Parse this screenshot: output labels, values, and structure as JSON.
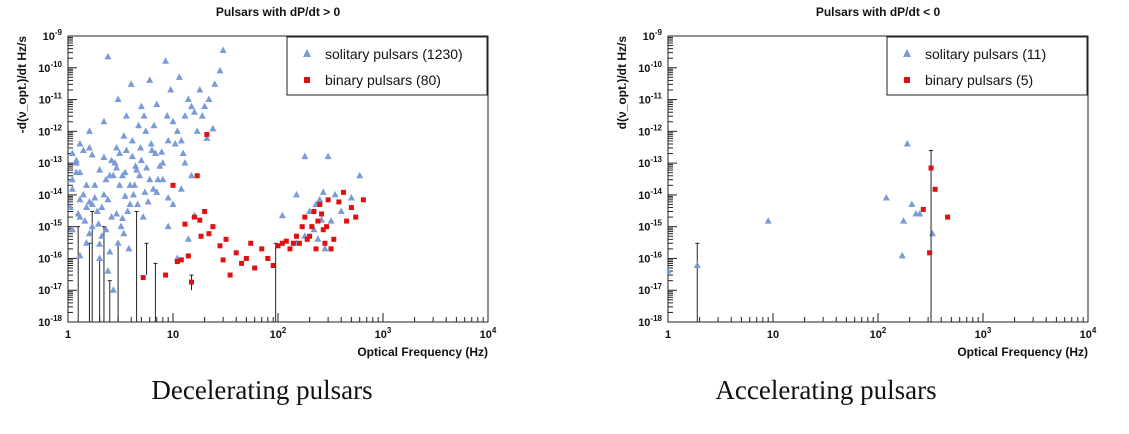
{
  "captions": [
    "Decelerating pulsars",
    "Accelerating pulsars"
  ],
  "colors": {
    "solitary": "#7b9bd6",
    "binary": "#e01010",
    "axis": "#222222",
    "errorbar": "#222222"
  },
  "chart_data": [
    {
      "type": "scatter",
      "title": "Pulsars with dP/dt > 0",
      "xlabel": "Optical Frequency (Hz)",
      "ylabel": "-d(ν_opt.)/dt  Hz/s",
      "xscale": "log",
      "yscale": "log",
      "xlim": [
        1,
        10000
      ],
      "ylim": [
        1e-18,
        1e-09
      ],
      "x_ticks": [
        "1",
        "10",
        "10^2",
        "10^3",
        "10^4"
      ],
      "y_ticks": [
        "10^-18",
        "10^-17",
        "10^-16",
        "10^-15",
        "10^-14",
        "10^-13",
        "10^-12",
        "10^-11",
        "10^-10",
        "10^-9"
      ],
      "legend_position": "top-right",
      "series": [
        {
          "name": "solitary pulsars (1230)",
          "marker": "triangle",
          "color": "#7b9bd6",
          "points": [
            [
              1.2,
              1e-13
            ],
            [
              1.3,
              5e-14
            ],
            [
              1.5,
              2e-14
            ],
            [
              1.8,
              8e-15
            ],
            [
              1.1,
              3e-14
            ],
            [
              1.4,
              1e-14
            ],
            [
              1.6,
              6e-15
            ],
            [
              1.9,
              3e-15
            ],
            [
              2.2,
              1e-14
            ],
            [
              2.5,
              4e-14
            ],
            [
              2.8,
              1e-13
            ],
            [
              3.1,
              2e-13
            ],
            [
              3.5,
              5e-14
            ],
            [
              3.9,
              2e-14
            ],
            [
              4.4,
              8e-14
            ],
            [
              4.9,
              3e-13
            ],
            [
              5.5,
              1e-12
            ],
            [
              6.2,
              4e-13
            ],
            [
              6.8,
              2e-13
            ],
            [
              7.5,
              8e-14
            ],
            [
              1.3,
              2e-15
            ],
            [
              1.7,
              1e-15
            ],
            [
              2.1,
              5e-16
            ],
            [
              2.6,
              2e-15
            ],
            [
              3.2,
              1e-15
            ],
            [
              3.7,
              3e-15
            ],
            [
              4.2,
              1e-14
            ],
            [
              1.1,
              8e-16
            ],
            [
              1.5,
              3e-16
            ],
            [
              2.0,
              1e-16
            ],
            [
              2.4,
              4e-17
            ],
            [
              2.7,
              1e-17
            ],
            [
              3.0,
              3e-16
            ],
            [
              3.4,
              6e-16
            ],
            [
              3.8,
              2e-16
            ],
            [
              4.6,
              5e-15
            ],
            [
              5.2,
              2e-15
            ],
            [
              5.8,
              6e-15
            ],
            [
              6.5,
              1.5e-14
            ],
            [
              7.2,
              3e-14
            ],
            [
              8.0,
              1e-13
            ],
            [
              9.0,
              5e-13
            ],
            [
              10,
              2e-12
            ],
            [
              11,
              1e-12
            ],
            [
              12,
              5e-13
            ],
            [
              13,
              3e-12
            ],
            [
              14,
              1e-11
            ],
            [
              16,
              4e-12
            ],
            [
              18,
              2e-11
            ],
            [
              20,
              6e-12
            ],
            [
              22,
              1e-11
            ],
            [
              25,
              3e-11
            ],
            [
              28,
              8e-11
            ],
            [
              30,
              3.5e-10
            ],
            [
              8.5,
              1.6e-10
            ],
            [
              6.0,
              4e-11
            ],
            [
              4.0,
              3e-11
            ],
            [
              3.0,
              1e-11
            ],
            [
              2.4,
              2.2e-10
            ],
            [
              9.5,
              2e-11
            ],
            [
              11.5,
              5e-11
            ],
            [
              5.0,
              6e-12
            ],
            [
              3.6,
              3e-12
            ],
            [
              2.2,
              2e-12
            ],
            [
              1.6,
              1e-12
            ],
            [
              1.3,
              4e-13
            ],
            [
              7.0,
              7e-12
            ],
            [
              15,
              6e-12
            ],
            [
              17,
              1e-12
            ],
            [
              19,
              3e-12
            ],
            [
              21,
              6e-13
            ],
            [
              24,
              1.2e-12
            ],
            [
              13,
              1e-13
            ],
            [
              15,
              4e-14
            ],
            [
              12,
              1.5e-14
            ],
            [
              10,
              5e-15
            ],
            [
              16,
              2.2e-15
            ],
            [
              9,
              1e-15
            ],
            [
              14,
              4e-16
            ],
            [
              11,
              1e-16
            ],
            [
              1.2,
              5e-14
            ],
            [
              1.4,
              2.5e-13
            ],
            [
              1.7,
              1.8e-13
            ],
            [
              2.0,
              6e-14
            ],
            [
              2.3,
              3e-14
            ],
            [
              2.6,
              1.2e-13
            ],
            [
              2.9,
              7e-14
            ],
            [
              3.3,
              4e-14
            ],
            [
              3.6,
              2.5e-13
            ],
            [
              4.1,
              1.6e-13
            ],
            [
              4.5,
              6e-14
            ],
            [
              5.0,
              1.2e-13
            ],
            [
              5.6,
              7e-14
            ],
            [
              6.3,
              2.5e-13
            ],
            [
              1.1,
              1.5e-14
            ],
            [
              1.3,
              7e-15
            ],
            [
              1.5,
              4e-15
            ],
            [
              1.8,
              2e-14
            ],
            [
              2.1,
              4e-15
            ],
            [
              2.4,
              7e-15
            ],
            [
              2.7,
              4e-14
            ],
            [
              3.1,
              2e-14
            ],
            [
              3.5,
              9e-15
            ],
            [
              3.9,
              5e-15
            ],
            [
              4.3,
              2e-14
            ],
            [
              4.8,
              4e-14
            ],
            [
              1.05,
              4e-15
            ],
            [
              1.25,
              2.5e-15
            ],
            [
              1.45,
              1.5e-15
            ],
            [
              1.7,
              5e-15
            ],
            [
              1.95,
              1.2e-15
            ],
            [
              2.3,
              8e-16
            ],
            [
              2.9,
              2.5e-15
            ],
            [
              3.3,
              1.8e-15
            ],
            [
              1.1,
              2e-13
            ],
            [
              1.2,
              1.2e-13
            ],
            [
              1.6,
              3e-13
            ],
            [
              2.2,
              1.5e-13
            ],
            [
              2.9,
              3e-13
            ],
            [
              3.4,
              7e-13
            ],
            [
              4.1,
              5e-13
            ],
            [
              4.7,
              1.5e-12
            ],
            [
              5.3,
              3e-12
            ],
            [
              6.6,
              1.5e-12
            ],
            [
              7.8,
              2.2e-13
            ],
            [
              8.8,
              3e-12
            ],
            [
              10.5,
              4e-13
            ],
            [
              12.5,
              2e-13
            ],
            [
              6.0,
              3e-14
            ],
            [
              7.0,
              1.2e-14
            ],
            [
              8.0,
              3e-14
            ],
            [
              9.0,
              8e-15
            ],
            [
              5.4,
              1.2e-14
            ],
            [
              2.0,
              2.8e-16
            ],
            [
              2.5,
              1.6e-16
            ],
            [
              1.3,
              1.2e-16
            ],
            [
              1.6,
              6e-16
            ],
            [
              110,
              2.2e-15
            ],
            [
              150,
              1e-14
            ],
            [
              180,
              1.6e-13
            ],
            [
              200,
              3e-15
            ],
            [
              230,
              5e-15
            ],
            [
              260,
              1.6e-15
            ],
            [
              300,
              1.6e-13
            ],
            [
              350,
              1e-14
            ],
            [
              400,
              3e-15
            ],
            [
              500,
              8e-15
            ],
            [
              600,
              4e-14
            ],
            [
              220,
              8e-16
            ],
            [
              240,
              4e-16
            ],
            [
              280,
              2e-16
            ],
            [
              250,
              7e-15
            ],
            [
              320,
              1.5e-15
            ],
            [
              180,
              5e-16
            ],
            [
              270,
              1.2e-14
            ],
            [
              150,
              3e-16
            ]
          ],
          "errorbars": [
            {
              "x": 1.6,
              "y": 3e-17,
              "low": 1e-18,
              "high": 3e-16
            },
            {
              "x": 1.7,
              "y": 4e-16,
              "low": 1e-18,
              "high": 3e-15
            },
            {
              "x": 2.0,
              "y": 5e-17,
              "low": 1e-18,
              "high": 1e-16
            },
            {
              "x": 2.5,
              "y": 8e-18,
              "low": 1e-18,
              "high": 2e-17
            },
            {
              "x": 3.0,
              "y": 2e-16,
              "low": 1e-18,
              "high": 3e-16
            },
            {
              "x": 4.5,
              "y": 2e-16,
              "low": 1e-18,
              "high": 3e-15
            },
            {
              "x": 6.8,
              "y": 3e-17,
              "low": 1e-18,
              "high": 7e-17
            },
            {
              "x": 5.6,
              "y": 1e-16,
              "low": 3e-17,
              "high": 3e-16
            },
            {
              "x": 1.25,
              "y": 2e-16,
              "low": 1e-18,
              "high": 1e-15
            },
            {
              "x": 2.2,
              "y": 1e-16,
              "low": 1e-18,
              "high": 1e-15
            }
          ]
        },
        {
          "name": "binary pulsars (80)",
          "marker": "square",
          "color": "#e01010",
          "points": [
            [
              10,
              2e-14
            ],
            [
              11,
              8e-17
            ],
            [
              12,
              9e-17
            ],
            [
              14,
              1.2e-16
            ],
            [
              15,
              1.8e-17
            ],
            [
              16,
              2e-15
            ],
            [
              17,
              4e-14
            ],
            [
              18,
              1.6e-15
            ],
            [
              20,
              3e-15
            ],
            [
              21,
              8e-13
            ],
            [
              22,
              6e-16
            ],
            [
              24,
              1e-15
            ],
            [
              28,
              2.5e-16
            ],
            [
              30,
              9e-17
            ],
            [
              32,
              4e-16
            ],
            [
              35,
              3e-17
            ],
            [
              40,
              1.5e-16
            ],
            [
              45,
              7e-17
            ],
            [
              50,
              1e-16
            ],
            [
              55,
              3e-16
            ],
            [
              60,
              5e-17
            ],
            [
              70,
              2e-16
            ],
            [
              80,
              1e-16
            ],
            [
              90,
              6e-17
            ],
            [
              100,
              2.5e-16
            ],
            [
              110,
              3e-16
            ],
            [
              120,
              3.5e-16
            ],
            [
              130,
              2e-16
            ],
            [
              140,
              3e-16
            ],
            [
              150,
              5e-16
            ],
            [
              160,
              3e-16
            ],
            [
              170,
              1e-15
            ],
            [
              180,
              2e-15
            ],
            [
              190,
              4e-16
            ],
            [
              200,
              5e-16
            ],
            [
              210,
              1e-15
            ],
            [
              220,
              3e-15
            ],
            [
              230,
              2e-16
            ],
            [
              240,
              1.5e-15
            ],
            [
              250,
              5e-15
            ],
            [
              260,
              2.5e-15
            ],
            [
              270,
              8e-16
            ],
            [
              280,
              3e-16
            ],
            [
              290,
              1e-15
            ],
            [
              300,
              7e-15
            ],
            [
              320,
              2e-16
            ],
            [
              340,
              4e-16
            ],
            [
              380,
              6e-15
            ],
            [
              420,
              1.2e-14
            ],
            [
              450,
              1.5e-15
            ],
            [
              500,
              4e-15
            ],
            [
              550,
              2e-15
            ],
            [
              650,
              7e-15
            ],
            [
              8.5,
              3e-17
            ],
            [
              5.2,
              2.5e-17
            ],
            [
              13,
              1.2e-15
            ],
            [
              18.5,
              5e-16
            ]
          ],
          "errorbars": [
            {
              "x": 15,
              "y": 1.8e-17,
              "low": 1e-17,
              "high": 3e-17
            },
            {
              "x": 95,
              "y": 1.5e-16,
              "low": 1e-18,
              "high": 3e-16
            }
          ]
        }
      ]
    },
    {
      "type": "scatter",
      "title": "Pulsars with dP/dt < 0",
      "xlabel": "Optical Frequency (Hz)",
      "ylabel": "d(ν_opt.)/dt  Hz/s",
      "xscale": "log",
      "yscale": "log",
      "xlim": [
        1,
        10000
      ],
      "ylim": [
        1e-18,
        1e-09
      ],
      "x_ticks": [
        "1",
        "10",
        "10^2",
        "10^3",
        "10^4"
      ],
      "y_ticks": [
        "10^-18",
        "10^-17",
        "10^-16",
        "10^-15",
        "10^-14",
        "10^-13",
        "10^-12",
        "10^-11",
        "10^-10",
        "10^-9"
      ],
      "legend_position": "top-right",
      "series": [
        {
          "name": "solitary pulsars (11)",
          "marker": "triangle",
          "color": "#7b9bd6",
          "points": [
            [
              1.0,
              4e-17
            ],
            [
              1.9,
              6e-17
            ],
            [
              9,
              1.5e-15
            ],
            [
              120,
              8e-15
            ],
            [
              170,
              1.2e-16
            ],
            [
              190,
              4e-13
            ],
            [
              210,
              5e-15
            ],
            [
              230,
              2.5e-15
            ],
            [
              250,
              2.5e-15
            ],
            [
              175,
              1.5e-15
            ],
            [
              330,
              6e-16
            ]
          ],
          "errorbars": [
            {
              "x": 1.9,
              "y": 6e-17,
              "low": 1e-18,
              "high": 3e-16
            }
          ]
        },
        {
          "name": "binary pulsars (5)",
          "marker": "square",
          "color": "#e01010",
          "points": [
            [
              270,
              3.5e-15
            ],
            [
              310,
              1.5e-16
            ],
            [
              320,
              7e-14
            ],
            [
              350,
              1.5e-14
            ],
            [
              460,
              2e-15
            ]
          ],
          "errorbars": [
            {
              "x": 320,
              "y": 7e-14,
              "low": 1e-18,
              "high": 2.5e-13
            }
          ]
        }
      ]
    }
  ]
}
